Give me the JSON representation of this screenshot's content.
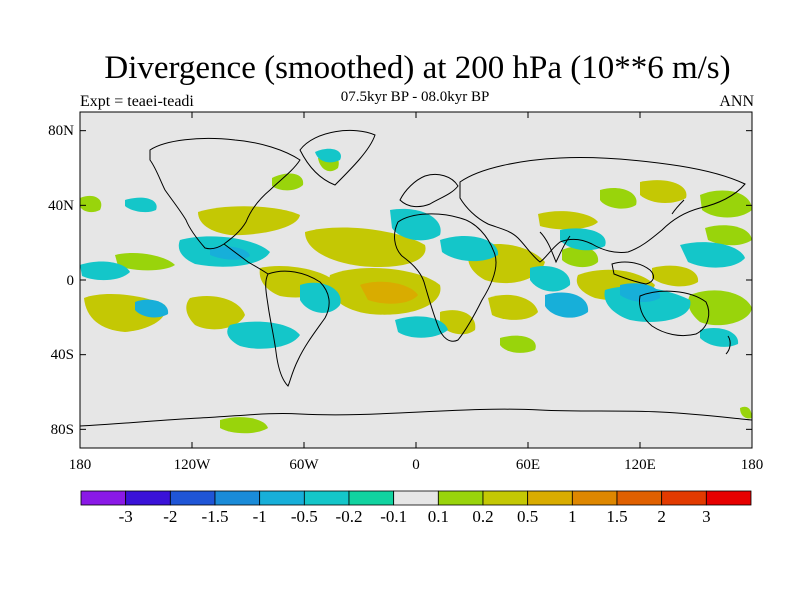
{
  "title": "Divergence (smoothed) at 200 hPa (10**6 m/s)",
  "subtitle": "07.5kyr BP - 08.0kyr BP",
  "left_label": "Expt = teaei-teadi",
  "right_label": "ANN",
  "map": {
    "projection": "cylindrical equidistant",
    "lon_range": [
      -180,
      180
    ],
    "lat_range": [
      -90,
      90
    ],
    "background_color": "#e6e6e6",
    "coastline_color": "#000000"
  },
  "axes": {
    "y_ticks": [
      "80N",
      "40N",
      "0",
      "40S",
      "80S"
    ],
    "x_ticks": [
      "180",
      "120W",
      "60W",
      "0",
      "60E",
      "120E",
      "180"
    ]
  },
  "colorbar": {
    "labels": [
      "-3",
      "-2",
      "-1.5",
      "-1",
      "-0.5",
      "-0.2",
      "-0.1",
      "0.1",
      "0.2",
      "0.5",
      "1",
      "1.5",
      "2",
      "3"
    ],
    "colors": [
      "#8a19e6",
      "#3a12d8",
      "#1f55d6",
      "#1a8bd8",
      "#17afd9",
      "#14c6c9",
      "#11d3a0",
      "#e6e6e6",
      "#99d40b",
      "#c4c804",
      "#d9ac00",
      "#de8700",
      "#e06000",
      "#e23a00",
      "#e60000"
    ]
  }
}
